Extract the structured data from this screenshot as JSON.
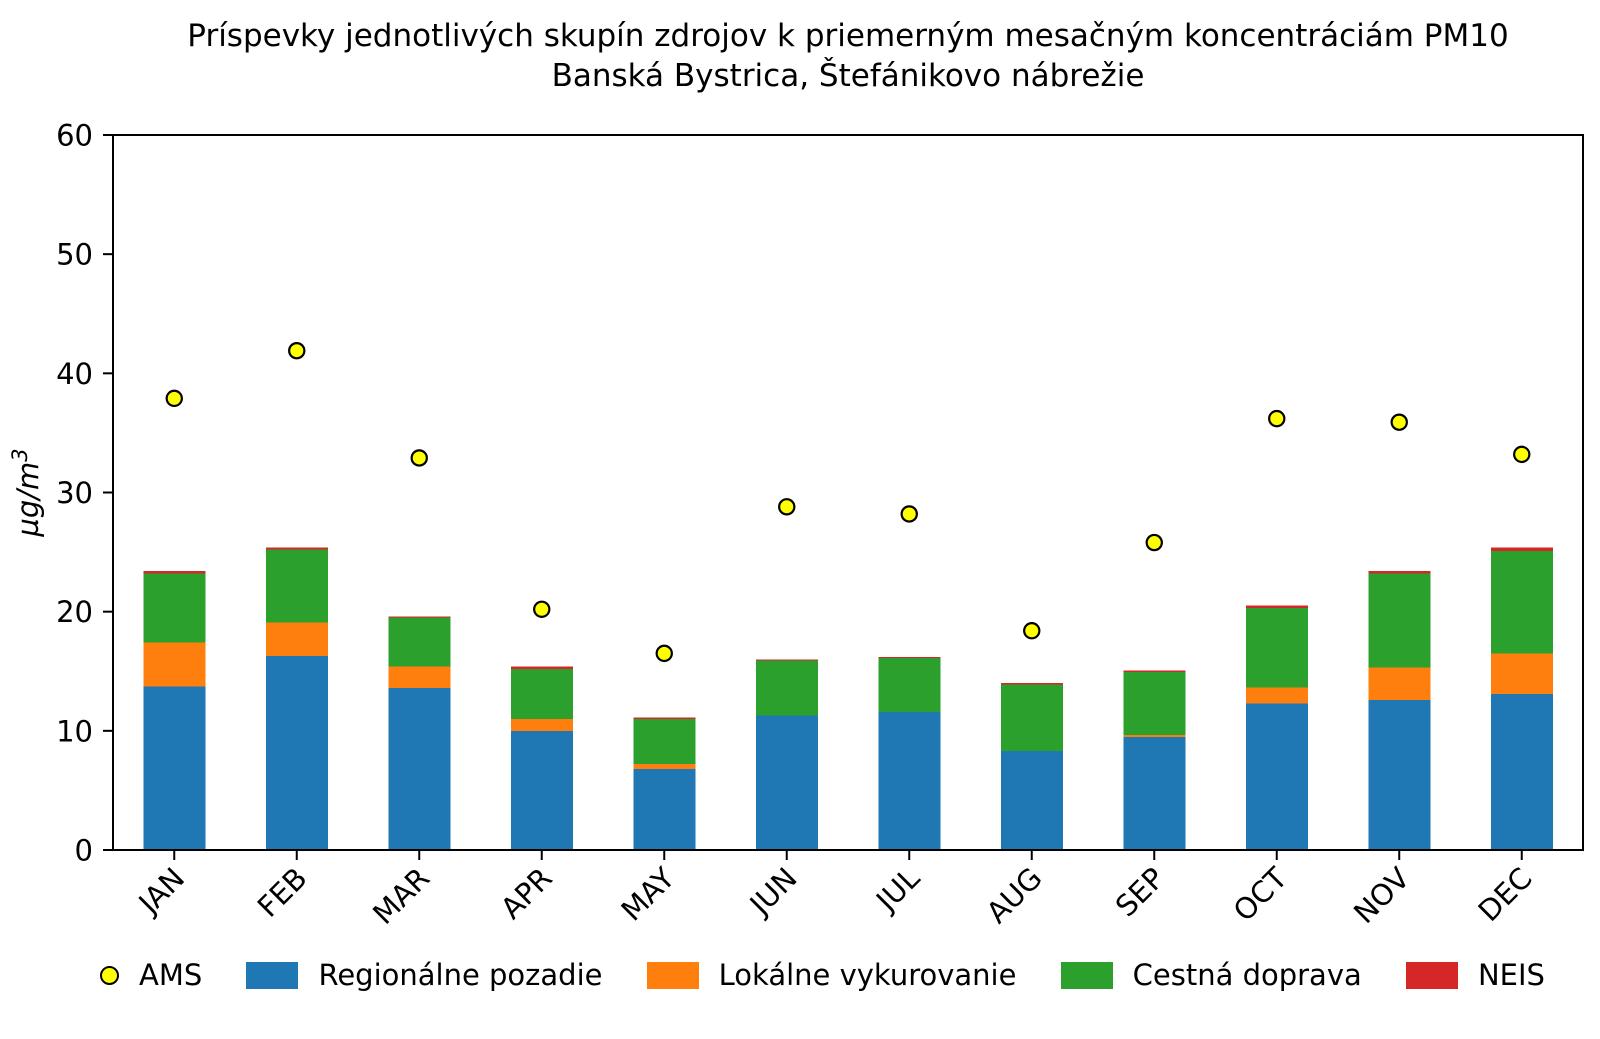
{
  "title": {
    "line1": "Príspevky jednotlivých skupín zdrojov k priemerným mesačným koncentráciám PM10",
    "line2": "Banská Bystrica, Štefánikovo nábrežie"
  },
  "chart_data": {
    "type": "bar",
    "stacked": true,
    "title": "Príspevky jednotlivých skupín zdrojov k priemerným mesačným koncentráciám PM10 — Banská Bystrica, Štefánikovo nábrežie",
    "xlabel": "",
    "ylabel": "µg/m³",
    "ylim": [
      0,
      60
    ],
    "yticks": [
      0,
      10,
      20,
      30,
      40,
      50,
      60
    ],
    "grid": false,
    "legend_position": "bottom",
    "x_tick_rotation": 45,
    "categories": [
      "JAN",
      "FEB",
      "MAR",
      "APR",
      "MAY",
      "JUN",
      "JUL",
      "AUG",
      "SEP",
      "OCT",
      "NOV",
      "DEC"
    ],
    "series": [
      {
        "key": "regionalne-pozadie",
        "name": "Regionálne pozadie",
        "color": "#1f77b4",
        "values": [
          13.7,
          16.3,
          13.6,
          10.0,
          6.8,
          11.3,
          11.6,
          8.3,
          9.5,
          12.3,
          12.6,
          13.1
        ]
      },
      {
        "key": "lokalne-vykurovanie",
        "name": "Lokálne vykurovanie",
        "color": "#ff7f0e",
        "values": [
          3.7,
          2.8,
          1.8,
          1.0,
          0.4,
          0.0,
          0.0,
          0.0,
          0.15,
          1.35,
          2.7,
          3.4
        ]
      },
      {
        "key": "cestna-doprava",
        "name": "Cestná doprava",
        "color": "#2ca02c",
        "values": [
          5.8,
          6.1,
          4.1,
          4.2,
          3.8,
          4.6,
          4.5,
          5.6,
          5.3,
          6.65,
          7.9,
          8.6
        ]
      },
      {
        "key": "neis",
        "name": "NEIS",
        "color": "#d62728",
        "values": [
          0.2,
          0.2,
          0.1,
          0.2,
          0.1,
          0.1,
          0.1,
          0.1,
          0.1,
          0.2,
          0.2,
          0.3
        ]
      }
    ],
    "scatter": [
      {
        "key": "ams",
        "name": "AMS",
        "color": "#ffff00",
        "edge_color": "#000000",
        "values": [
          37.9,
          41.9,
          32.9,
          20.2,
          16.5,
          28.8,
          28.2,
          18.4,
          25.8,
          36.2,
          35.9,
          33.2
        ]
      }
    ]
  },
  "legend": {
    "items": [
      {
        "key": "ams",
        "label": "AMS",
        "marker": "circle",
        "color": "#ffff00",
        "edge": "#000000"
      },
      {
        "key": "regionalne-pozadie",
        "label": "Regionálne pozadie",
        "marker": "square",
        "color": "#1f77b4"
      },
      {
        "key": "lokalne-vykurovanie",
        "label": "Lokálne vykurovanie",
        "marker": "square",
        "color": "#ff7f0e"
      },
      {
        "key": "cestna-doprava",
        "label": "Cestná doprava",
        "marker": "square",
        "color": "#2ca02c"
      },
      {
        "key": "neis",
        "label": "NEIS",
        "marker": "square",
        "color": "#d62728"
      }
    ]
  },
  "colors": {
    "axis": "#000000",
    "background": "#ffffff",
    "text": "#000000"
  }
}
